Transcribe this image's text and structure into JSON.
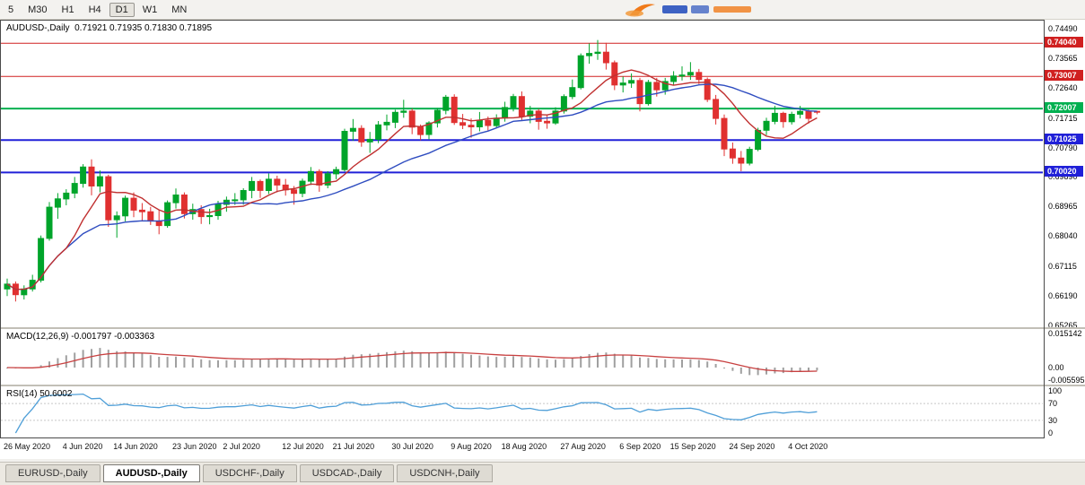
{
  "colors": {
    "up": "#00A42A",
    "down": "#E03030",
    "ma_fast": "#C03030",
    "ma_slow": "#2F4DC0",
    "level_red": "#D02020",
    "level_blue": "#2020D8",
    "level_green": "#00B050",
    "macd_hist": "#A0A0A0",
    "macd_signal": "#C84040",
    "rsi_line": "#4F9FD8"
  },
  "toolbar": {
    "timeframes": [
      "5",
      "M30",
      "H1",
      "H4",
      "D1",
      "W1",
      "MN"
    ],
    "active": "D1"
  },
  "main_chart": {
    "header": "AUDUSD-,Daily  0.71921 0.71935 0.71830 0.71895",
    "symbol": "AUDUSD-,Daily",
    "ohlc_display": {
      "open": "0.71921",
      "high": "0.71935",
      "low": "0.71830",
      "close": "0.71895"
    },
    "price_axis_ticks": [
      "0.74490",
      "0.73565",
      "0.72640",
      "0.71715",
      "0.70790",
      "0.69890",
      "0.68965",
      "0.68040",
      "0.67115",
      "0.66190",
      "0.65265"
    ]
  },
  "macd_panel": {
    "header": "MACD(12,26,9) -0.001797 -0.003363",
    "axis_ticks": [
      "0.015142",
      "0.00",
      "-0.005595"
    ]
  },
  "rsi_panel": {
    "header": "RSI(14) 50.6002",
    "axis_ticks": [
      "100",
      "70",
      "30",
      "0"
    ],
    "value": "50.6002"
  },
  "date_axis": [
    {
      "label": "26 May 2020",
      "index": 0
    },
    {
      "label": "4 Jun 2020",
      "index": 7
    },
    {
      "label": "14 Jun 2020",
      "index": 13
    },
    {
      "label": "23 Jun 2020",
      "index": 20
    },
    {
      "label": "2 Jul 2020",
      "index": 26
    },
    {
      "label": "12 Jul 2020",
      "index": 33
    },
    {
      "label": "21 Jul 2020",
      "index": 39
    },
    {
      "label": "30 Jul 2020",
      "index": 46
    },
    {
      "label": "9 Aug 2020",
      "index": 53
    },
    {
      "label": "18 Aug 2020",
      "index": 59
    },
    {
      "label": "27 Aug 2020",
      "index": 66
    },
    {
      "label": "6 Sep 2020",
      "index": 73
    },
    {
      "label": "15 Sep 2020",
      "index": 79
    },
    {
      "label": "24 Sep 2020",
      "index": 86
    },
    {
      "label": "4 Oct 2020",
      "index": 93
    }
  ],
  "tabs": [
    {
      "label": "EURUSD-,Daily",
      "active": false
    },
    {
      "label": "AUDUSD-,Daily",
      "active": true
    },
    {
      "label": "USDCHF-,Daily",
      "active": false
    },
    {
      "label": "USDCAD-,Daily",
      "active": false
    },
    {
      "label": "USDCNH-,Daily",
      "active": false
    }
  ],
  "chart_data": {
    "type": "candlestick",
    "symbol": "AUDUSD-",
    "timeframe": "Daily",
    "last_ohlc": {
      "open": 0.71921,
      "high": 0.71935,
      "low": 0.7183,
      "close": 0.71895
    },
    "visible_price_range": [
      0.65211,
      0.74769
    ],
    "levels": [
      {
        "price": 0.7404,
        "label": "0.74040",
        "color": "red",
        "width": 1
      },
      {
        "price": 0.73007,
        "label": "0.73007",
        "color": "red",
        "width": 1
      },
      {
        "price": 0.72007,
        "label": "0.72007",
        "color": "green",
        "width": 2
      },
      {
        "price": 0.71025,
        "label": "0.71025",
        "color": "blue",
        "width": 2
      },
      {
        "price": 0.7002,
        "label": "0.70020",
        "color": "blue",
        "width": 2
      }
    ],
    "indicators": {
      "ma_fast": {
        "type": "sma",
        "period": 8
      },
      "ma_slow": {
        "type": "sma",
        "period": 21
      },
      "macd": {
        "fast": 12,
        "slow": 26,
        "signal": 9,
        "current_values": [
          -0.001797,
          -0.003363
        ],
        "axis_range": [
          -0.005595,
          0.015142
        ]
      },
      "rsi": {
        "period": 14,
        "current_value": 50.6002,
        "levels": [
          30,
          70
        ],
        "axis_range": [
          0,
          100
        ]
      }
    },
    "candles": [
      [
        0.664,
        0.6672,
        0.6618,
        0.6655
      ],
      [
        0.6655,
        0.6663,
        0.6601,
        0.6622
      ],
      [
        0.6622,
        0.6651,
        0.6607,
        0.664
      ],
      [
        0.664,
        0.6684,
        0.6632,
        0.6667
      ],
      [
        0.6667,
        0.6806,
        0.666,
        0.6797
      ],
      [
        0.6797,
        0.691,
        0.679,
        0.6894
      ],
      [
        0.6894,
        0.6938,
        0.6858,
        0.692
      ],
      [
        0.692,
        0.695,
        0.69,
        0.6938
      ],
      [
        0.6938,
        0.6988,
        0.6922,
        0.6968
      ],
      [
        0.6968,
        0.7028,
        0.6955,
        0.7019
      ],
      [
        0.7019,
        0.7043,
        0.6931,
        0.696
      ],
      [
        0.696,
        0.7008,
        0.694,
        0.6989
      ],
      [
        0.6989,
        0.6995,
        0.6833,
        0.6855
      ],
      [
        0.6855,
        0.6881,
        0.6799,
        0.6867
      ],
      [
        0.6867,
        0.693,
        0.685,
        0.6922
      ],
      [
        0.6922,
        0.694,
        0.6863,
        0.6885
      ],
      [
        0.6885,
        0.6907,
        0.685,
        0.688
      ],
      [
        0.688,
        0.6895,
        0.6839,
        0.6851
      ],
      [
        0.6851,
        0.6885,
        0.681,
        0.6837
      ],
      [
        0.6837,
        0.6915,
        0.683,
        0.6908
      ],
      [
        0.6908,
        0.6952,
        0.689,
        0.6932
      ],
      [
        0.6932,
        0.694,
        0.6859,
        0.6874
      ],
      [
        0.6874,
        0.6905,
        0.6855,
        0.6887
      ],
      [
        0.6887,
        0.69,
        0.6842,
        0.6865
      ],
      [
        0.6865,
        0.6889,
        0.6841,
        0.6868
      ],
      [
        0.6868,
        0.6914,
        0.6855,
        0.6903
      ],
      [
        0.6903,
        0.6927,
        0.688,
        0.6916
      ],
      [
        0.6916,
        0.6938,
        0.6901,
        0.6917
      ],
      [
        0.6917,
        0.6953,
        0.6902,
        0.6946
      ],
      [
        0.6946,
        0.6988,
        0.6922,
        0.6974
      ],
      [
        0.6974,
        0.698,
        0.6923,
        0.6946
      ],
      [
        0.6946,
        0.6999,
        0.6935,
        0.6981
      ],
      [
        0.6981,
        0.6992,
        0.694,
        0.6963
      ],
      [
        0.6963,
        0.6982,
        0.693,
        0.6948
      ],
      [
        0.6948,
        0.696,
        0.6902,
        0.6937
      ],
      [
        0.6937,
        0.6983,
        0.6925,
        0.6975
      ],
      [
        0.6975,
        0.7019,
        0.6963,
        0.7005
      ],
      [
        0.7005,
        0.7012,
        0.6942,
        0.6963
      ],
      [
        0.6963,
        0.7006,
        0.6953,
        0.6998
      ],
      [
        0.6998,
        0.702,
        0.6981,
        0.7011
      ],
      [
        0.7011,
        0.7138,
        0.7005,
        0.713
      ],
      [
        0.713,
        0.7168,
        0.7101,
        0.7139
      ],
      [
        0.7139,
        0.7149,
        0.7082,
        0.7097
      ],
      [
        0.7097,
        0.7128,
        0.7063,
        0.7105
      ],
      [
        0.7105,
        0.7162,
        0.7093,
        0.715
      ],
      [
        0.715,
        0.7182,
        0.7133,
        0.7158
      ],
      [
        0.7158,
        0.7197,
        0.714,
        0.7189
      ],
      [
        0.7189,
        0.7228,
        0.7172,
        0.7193
      ],
      [
        0.7193,
        0.7201,
        0.7121,
        0.7143
      ],
      [
        0.7143,
        0.7151,
        0.7102,
        0.712
      ],
      [
        0.712,
        0.7161,
        0.7105,
        0.7156
      ],
      [
        0.7156,
        0.7202,
        0.7142,
        0.7195
      ],
      [
        0.7195,
        0.7243,
        0.7183,
        0.7236
      ],
      [
        0.7236,
        0.7245,
        0.715,
        0.7157
      ],
      [
        0.7157,
        0.7184,
        0.7137,
        0.7149
      ],
      [
        0.7149,
        0.717,
        0.711,
        0.7144
      ],
      [
        0.7144,
        0.719,
        0.713,
        0.7164
      ],
      [
        0.7164,
        0.7176,
        0.7133,
        0.7148
      ],
      [
        0.7148,
        0.7183,
        0.7142,
        0.7171
      ],
      [
        0.7171,
        0.7222,
        0.716,
        0.7204
      ],
      [
        0.7204,
        0.7246,
        0.7192,
        0.7238
      ],
      [
        0.7238,
        0.7254,
        0.7165,
        0.7177
      ],
      [
        0.7177,
        0.7209,
        0.7155,
        0.7193
      ],
      [
        0.7193,
        0.72,
        0.7135,
        0.7161
      ],
      [
        0.7161,
        0.7182,
        0.7138,
        0.7156
      ],
      [
        0.7156,
        0.7205,
        0.715,
        0.7193
      ],
      [
        0.7193,
        0.7245,
        0.7185,
        0.7238
      ],
      [
        0.7238,
        0.7291,
        0.723,
        0.7266
      ],
      [
        0.7266,
        0.7372,
        0.726,
        0.7365
      ],
      [
        0.7365,
        0.7403,
        0.734,
        0.7372
      ],
      [
        0.7372,
        0.7414,
        0.7352,
        0.7376
      ],
      [
        0.7376,
        0.7405,
        0.7322,
        0.7343
      ],
      [
        0.7343,
        0.735,
        0.7258,
        0.7274
      ],
      [
        0.7274,
        0.73,
        0.7251,
        0.728
      ],
      [
        0.728,
        0.731,
        0.7265,
        0.7288
      ],
      [
        0.7288,
        0.7296,
        0.7192,
        0.7216
      ],
      [
        0.7216,
        0.729,
        0.721,
        0.7282
      ],
      [
        0.7282,
        0.7296,
        0.7238,
        0.7259
      ],
      [
        0.7259,
        0.7296,
        0.7244,
        0.7285
      ],
      [
        0.7285,
        0.7317,
        0.7272,
        0.7302
      ],
      [
        0.7302,
        0.7332,
        0.7288,
        0.7305
      ],
      [
        0.7305,
        0.7345,
        0.729,
        0.7313
      ],
      [
        0.7313,
        0.7324,
        0.7277,
        0.7291
      ],
      [
        0.7291,
        0.7297,
        0.7221,
        0.7229
      ],
      [
        0.7229,
        0.7243,
        0.7151,
        0.717
      ],
      [
        0.717,
        0.7182,
        0.7053,
        0.7075
      ],
      [
        0.7075,
        0.7095,
        0.7029,
        0.7047
      ],
      [
        0.7047,
        0.7069,
        0.7006,
        0.7031
      ],
      [
        0.7031,
        0.7082,
        0.7024,
        0.7074
      ],
      [
        0.7074,
        0.7141,
        0.7068,
        0.7133
      ],
      [
        0.7133,
        0.7172,
        0.7118,
        0.7161
      ],
      [
        0.7161,
        0.7209,
        0.7152,
        0.7186
      ],
      [
        0.7186,
        0.7191,
        0.7141,
        0.716
      ],
      [
        0.716,
        0.7191,
        0.7151,
        0.7183
      ],
      [
        0.7183,
        0.7209,
        0.717,
        0.7192
      ],
      [
        0.7192,
        0.7198,
        0.7154,
        0.717
      ],
      [
        0.71921,
        0.71935,
        0.7183,
        0.71895
      ]
    ]
  }
}
